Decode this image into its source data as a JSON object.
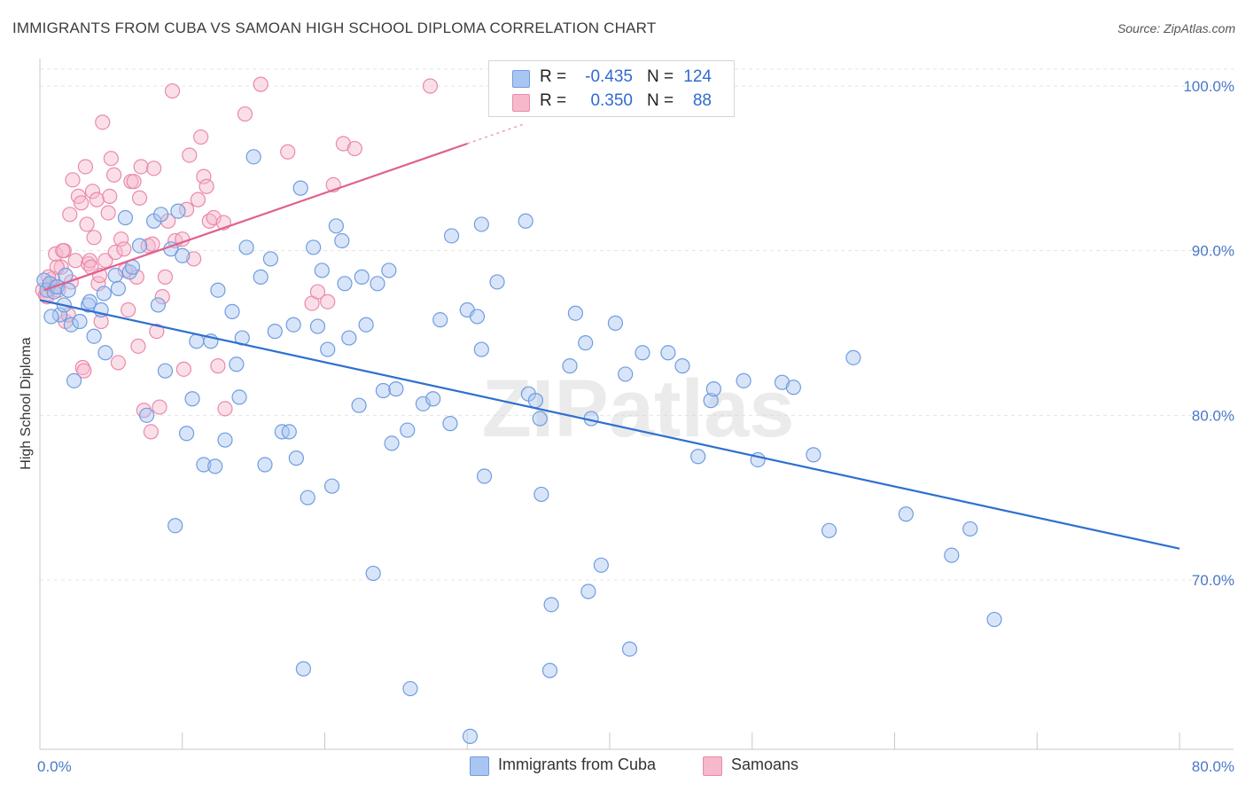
{
  "title": "IMMIGRANTS FROM CUBA VS SAMOAN HIGH SCHOOL DIPLOMA CORRELATION CHART",
  "source": "Source: ZipAtlas.com",
  "watermark": "ZIPatlas",
  "legend": {
    "rows": [
      {
        "r_label": "R =",
        "r_value": "-0.435",
        "n_label": "N =",
        "n_value": "124"
      },
      {
        "r_label": "R =",
        "r_value": "0.350",
        "n_label": "N =",
        "n_value": "88"
      }
    ]
  },
  "bottom_legend": {
    "cuba": "Immigrants from Cuba",
    "samoans": "Samoans"
  },
  "colors": {
    "cuba_fill": "#a9c6f2",
    "cuba_stroke": "#6f9de0",
    "cuba_line": "#2e6fd0",
    "samoa_fill": "#f7b8cc",
    "samoa_stroke": "#e98aaa",
    "samoa_line": "#e0608e",
    "grid": "#e4e4e4",
    "axis_label": "#4a78c8"
  },
  "chart_data": {
    "type": "scatter",
    "title": "IMMIGRANTS FROM CUBA VS SAMOAN HIGH SCHOOL DIPLOMA CORRELATION CHART",
    "xlabel": "",
    "ylabel": "High School Diploma",
    "xlim": [
      0,
      80
    ],
    "ylim": [
      60,
      102
    ],
    "x_tick_labels": [
      "0.0%",
      "80.0%"
    ],
    "y_ticks": [
      70,
      80,
      90,
      100
    ],
    "y_tick_labels": [
      "70.0%",
      "80.0%",
      "90.0%",
      "100.0%"
    ],
    "grid": true,
    "legend_position": "top-center",
    "series": [
      {
        "name": "Immigrants from Cuba",
        "r": -0.435,
        "n": 124,
        "trend": {
          "x": [
            0,
            80
          ],
          "y": [
            87.0,
            71.9
          ]
        },
        "points": [
          [
            0.3,
            88.2
          ],
          [
            0.5,
            87.6
          ],
          [
            0.7,
            88.0
          ],
          [
            1.0,
            87.5
          ],
          [
            1.2,
            87.8
          ],
          [
            1.4,
            86.1
          ],
          [
            1.7,
            86.7
          ],
          [
            2.0,
            87.6
          ],
          [
            2.2,
            85.5
          ],
          [
            2.4,
            82.1
          ],
          [
            3.4,
            86.7
          ],
          [
            3.5,
            86.9
          ],
          [
            3.8,
            84.8
          ],
          [
            4.3,
            86.4
          ],
          [
            4.5,
            87.4
          ],
          [
            4.6,
            83.8
          ],
          [
            5.3,
            88.5
          ],
          [
            5.5,
            87.7
          ],
          [
            6.3,
            88.7
          ],
          [
            6.5,
            89.0
          ],
          [
            6.0,
            92.0
          ],
          [
            7.0,
            90.3
          ],
          [
            7.5,
            80.0
          ],
          [
            8.0,
            91.8
          ],
          [
            8.3,
            86.7
          ],
          [
            8.5,
            92.2
          ],
          [
            8.8,
            82.7
          ],
          [
            9.2,
            90.1
          ],
          [
            9.5,
            73.3
          ],
          [
            10.0,
            89.7
          ],
          [
            10.3,
            78.9
          ],
          [
            10.7,
            81.0
          ],
          [
            11.0,
            84.5
          ],
          [
            11.5,
            77.0
          ],
          [
            12.0,
            84.5
          ],
          [
            12.3,
            76.9
          ],
          [
            12.5,
            87.6
          ],
          [
            13.0,
            78.5
          ],
          [
            13.5,
            86.3
          ],
          [
            13.8,
            83.1
          ],
          [
            14.0,
            81.1
          ],
          [
            14.2,
            84.7
          ],
          [
            14.5,
            90.2
          ],
          [
            15.0,
            95.7
          ],
          [
            15.5,
            88.4
          ],
          [
            15.8,
            77.0
          ],
          [
            16.2,
            89.5
          ],
          [
            16.5,
            85.1
          ],
          [
            17.0,
            79.0
          ],
          [
            17.5,
            79.0
          ],
          [
            17.8,
            85.5
          ],
          [
            18.0,
            77.4
          ],
          [
            18.3,
            93.8
          ],
          [
            18.5,
            64.6
          ],
          [
            18.8,
            75.0
          ],
          [
            19.2,
            90.2
          ],
          [
            19.5,
            85.4
          ],
          [
            19.8,
            88.8
          ],
          [
            20.2,
            84.0
          ],
          [
            20.5,
            75.7
          ],
          [
            20.8,
            91.5
          ],
          [
            21.2,
            90.6
          ],
          [
            21.4,
            88.0
          ],
          [
            21.7,
            84.7
          ],
          [
            22.4,
            80.6
          ],
          [
            22.6,
            88.4
          ],
          [
            22.9,
            85.5
          ],
          [
            23.4,
            70.4
          ],
          [
            23.7,
            88.0
          ],
          [
            24.1,
            81.5
          ],
          [
            24.5,
            88.8
          ],
          [
            24.7,
            78.3
          ],
          [
            25.0,
            81.6
          ],
          [
            25.8,
            79.1
          ],
          [
            26.0,
            63.4
          ],
          [
            26.9,
            80.7
          ],
          [
            27.6,
            81.0
          ],
          [
            28.1,
            85.8
          ],
          [
            28.8,
            79.5
          ],
          [
            28.9,
            90.9
          ],
          [
            30.0,
            86.4
          ],
          [
            30.2,
            60.5
          ],
          [
            30.7,
            86.0
          ],
          [
            31.0,
            91.6
          ],
          [
            31.0,
            84.0
          ],
          [
            31.2,
            76.3
          ],
          [
            32.1,
            88.1
          ],
          [
            34.1,
            91.8
          ],
          [
            34.3,
            81.3
          ],
          [
            34.8,
            80.9
          ],
          [
            35.1,
            79.8
          ],
          [
            35.2,
            75.2
          ],
          [
            35.8,
            64.5
          ],
          [
            35.9,
            68.5
          ],
          [
            37.2,
            83.0
          ],
          [
            37.6,
            86.2
          ],
          [
            38.3,
            84.4
          ],
          [
            38.5,
            69.3
          ],
          [
            38.7,
            79.8
          ],
          [
            39.4,
            70.9
          ],
          [
            40.4,
            85.6
          ],
          [
            41.1,
            82.5
          ],
          [
            41.4,
            65.8
          ],
          [
            42.3,
            83.8
          ],
          [
            44.1,
            83.8
          ],
          [
            45.1,
            83.0
          ],
          [
            46.2,
            77.5
          ],
          [
            47.1,
            80.9
          ],
          [
            47.3,
            81.6
          ],
          [
            49.4,
            82.1
          ],
          [
            50.4,
            77.3
          ],
          [
            52.1,
            82.0
          ],
          [
            52.9,
            81.7
          ],
          [
            54.3,
            77.6
          ],
          [
            55.4,
            73.0
          ],
          [
            57.1,
            83.5
          ],
          [
            60.8,
            74.0
          ],
          [
            64.0,
            71.5
          ],
          [
            65.3,
            73.1
          ],
          [
            67.0,
            67.6
          ],
          [
            0.8,
            86.0
          ],
          [
            1.8,
            88.5
          ],
          [
            2.8,
            85.7
          ],
          [
            9.7,
            92.4
          ]
        ]
      },
      {
        "name": "Samoans",
        "r": 0.35,
        "n": 88,
        "trend": {
          "x": [
            0.3,
            30.0
          ],
          "y": [
            87.6,
            96.5
          ]
        },
        "points": [
          [
            0.2,
            87.6
          ],
          [
            0.4,
            87.3
          ],
          [
            0.5,
            87.2
          ],
          [
            0.7,
            88.0
          ],
          [
            0.9,
            88.3
          ],
          [
            1.0,
            87.8
          ],
          [
            1.1,
            89.8
          ],
          [
            1.3,
            87.6
          ],
          [
            1.5,
            89.0
          ],
          [
            1.7,
            90.0
          ],
          [
            1.8,
            85.7
          ],
          [
            2.0,
            86.1
          ],
          [
            2.2,
            88.1
          ],
          [
            2.3,
            94.3
          ],
          [
            2.5,
            89.4
          ],
          [
            2.7,
            93.3
          ],
          [
            2.9,
            92.9
          ],
          [
            3.0,
            82.9
          ],
          [
            3.1,
            82.7
          ],
          [
            3.2,
            95.1
          ],
          [
            3.3,
            91.6
          ],
          [
            3.4,
            89.2
          ],
          [
            3.5,
            89.4
          ],
          [
            3.7,
            93.6
          ],
          [
            3.8,
            90.8
          ],
          [
            4.0,
            93.1
          ],
          [
            4.1,
            88.0
          ],
          [
            4.2,
            88.5
          ],
          [
            4.3,
            85.7
          ],
          [
            4.4,
            97.8
          ],
          [
            4.6,
            89.4
          ],
          [
            4.8,
            92.3
          ],
          [
            5.0,
            95.6
          ],
          [
            5.2,
            94.6
          ],
          [
            5.3,
            89.9
          ],
          [
            5.5,
            83.2
          ],
          [
            5.7,
            90.7
          ],
          [
            6.0,
            88.8
          ],
          [
            6.2,
            86.4
          ],
          [
            6.4,
            94.2
          ],
          [
            6.6,
            94.2
          ],
          [
            6.8,
            88.4
          ],
          [
            7.0,
            93.2
          ],
          [
            7.1,
            95.1
          ],
          [
            7.3,
            80.3
          ],
          [
            7.6,
            90.3
          ],
          [
            7.9,
            90.4
          ],
          [
            8.0,
            95.0
          ],
          [
            8.2,
            85.1
          ],
          [
            8.4,
            80.5
          ],
          [
            8.6,
            87.2
          ],
          [
            8.8,
            88.4
          ],
          [
            9.0,
            91.8
          ],
          [
            9.3,
            99.7
          ],
          [
            9.5,
            90.6
          ],
          [
            10.0,
            90.7
          ],
          [
            10.3,
            92.5
          ],
          [
            10.5,
            95.8
          ],
          [
            10.8,
            89.5
          ],
          [
            11.1,
            93.1
          ],
          [
            11.3,
            96.9
          ],
          [
            11.5,
            94.5
          ],
          [
            11.7,
            93.9
          ],
          [
            11.9,
            91.8
          ],
          [
            12.2,
            92.0
          ],
          [
            12.5,
            83.0
          ],
          [
            12.9,
            91.7
          ],
          [
            13.0,
            80.4
          ],
          [
            14.4,
            98.3
          ],
          [
            15.5,
            100.1
          ],
          [
            17.4,
            96.0
          ],
          [
            19.1,
            86.8
          ],
          [
            19.5,
            87.5
          ],
          [
            20.2,
            86.9
          ],
          [
            20.6,
            94.0
          ],
          [
            21.3,
            96.5
          ],
          [
            22.1,
            96.2
          ],
          [
            27.4,
            100.0
          ],
          [
            1.2,
            89.0
          ],
          [
            2.1,
            92.2
          ],
          [
            3.6,
            89.0
          ],
          [
            5.9,
            90.1
          ],
          [
            6.9,
            84.2
          ],
          [
            7.8,
            79.0
          ],
          [
            4.9,
            93.3
          ],
          [
            0.6,
            88.4
          ],
          [
            1.6,
            90.0
          ],
          [
            10.1,
            82.8
          ]
        ]
      }
    ]
  }
}
